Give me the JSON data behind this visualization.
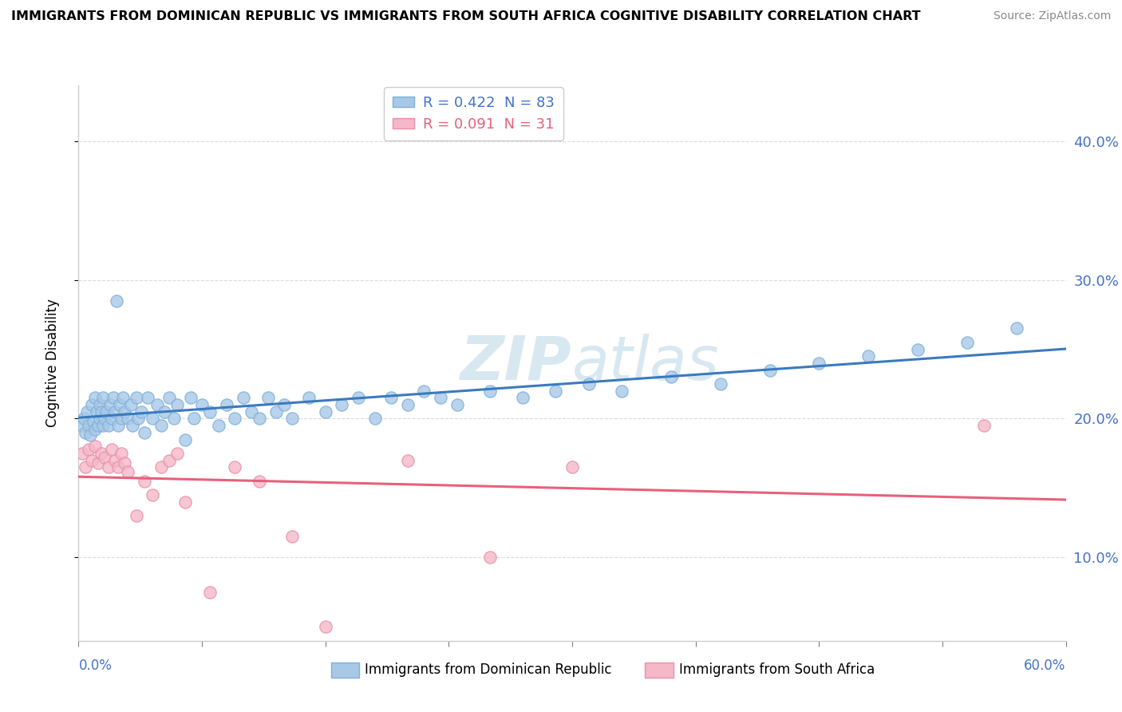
{
  "title": "IMMIGRANTS FROM DOMINICAN REPUBLIC VS IMMIGRANTS FROM SOUTH AFRICA COGNITIVE DISABILITY CORRELATION CHART",
  "source": "Source: ZipAtlas.com",
  "ylabel": "Cognitive Disability",
  "right_yticks": [
    0.1,
    0.2,
    0.3,
    0.4
  ],
  "right_ytick_labels": [
    "10.0%",
    "20.0%",
    "30.0%",
    "40.0%"
  ],
  "legend1_label": "R = 0.422  N = 83",
  "legend2_label": "R = 0.091  N = 31",
  "blue_color": "#a8c8e8",
  "blue_edge_color": "#7eb0d8",
  "pink_color": "#f4b8c8",
  "pink_edge_color": "#e890a8",
  "blue_line_color": "#3a7abf",
  "pink_line_color": "#e8607a",
  "watermark_color": "#d8e8f0",
  "xlim": [
    0.0,
    0.6
  ],
  "ylim": [
    0.04,
    0.44
  ],
  "blue_scatter_x": [
    0.002,
    0.003,
    0.004,
    0.005,
    0.006,
    0.007,
    0.008,
    0.009,
    0.01,
    0.01,
    0.011,
    0.012,
    0.013,
    0.013,
    0.014,
    0.015,
    0.015,
    0.016,
    0.017,
    0.018,
    0.019,
    0.02,
    0.021,
    0.022,
    0.023,
    0.024,
    0.025,
    0.026,
    0.027,
    0.028,
    0.03,
    0.032,
    0.033,
    0.035,
    0.036,
    0.038,
    0.04,
    0.042,
    0.045,
    0.048,
    0.05,
    0.052,
    0.055,
    0.058,
    0.06,
    0.065,
    0.068,
    0.07,
    0.075,
    0.08,
    0.085,
    0.09,
    0.095,
    0.1,
    0.105,
    0.11,
    0.115,
    0.12,
    0.125,
    0.13,
    0.14,
    0.15,
    0.16,
    0.17,
    0.18,
    0.19,
    0.2,
    0.21,
    0.22,
    0.23,
    0.25,
    0.27,
    0.29,
    0.31,
    0.33,
    0.36,
    0.39,
    0.42,
    0.45,
    0.48,
    0.51,
    0.54,
    0.57
  ],
  "blue_scatter_y": [
    0.195,
    0.2,
    0.19,
    0.205,
    0.195,
    0.188,
    0.21,
    0.198,
    0.215,
    0.192,
    0.205,
    0.195,
    0.2,
    0.21,
    0.205,
    0.195,
    0.215,
    0.2,
    0.205,
    0.195,
    0.21,
    0.2,
    0.215,
    0.205,
    0.285,
    0.195,
    0.21,
    0.2,
    0.215,
    0.205,
    0.2,
    0.21,
    0.195,
    0.215,
    0.2,
    0.205,
    0.19,
    0.215,
    0.2,
    0.21,
    0.195,
    0.205,
    0.215,
    0.2,
    0.21,
    0.185,
    0.215,
    0.2,
    0.21,
    0.205,
    0.195,
    0.21,
    0.2,
    0.215,
    0.205,
    0.2,
    0.215,
    0.205,
    0.21,
    0.2,
    0.215,
    0.205,
    0.21,
    0.215,
    0.2,
    0.215,
    0.21,
    0.22,
    0.215,
    0.21,
    0.22,
    0.215,
    0.22,
    0.225,
    0.22,
    0.23,
    0.225,
    0.235,
    0.24,
    0.245,
    0.25,
    0.255,
    0.265
  ],
  "pink_scatter_x": [
    0.002,
    0.004,
    0.006,
    0.008,
    0.01,
    0.012,
    0.014,
    0.016,
    0.018,
    0.02,
    0.022,
    0.024,
    0.026,
    0.028,
    0.03,
    0.035,
    0.04,
    0.045,
    0.05,
    0.055,
    0.06,
    0.065,
    0.08,
    0.095,
    0.11,
    0.13,
    0.15,
    0.2,
    0.25,
    0.3,
    0.55
  ],
  "pink_scatter_y": [
    0.175,
    0.165,
    0.178,
    0.17,
    0.18,
    0.168,
    0.175,
    0.172,
    0.165,
    0.178,
    0.17,
    0.165,
    0.175,
    0.168,
    0.162,
    0.13,
    0.155,
    0.145,
    0.165,
    0.17,
    0.175,
    0.14,
    0.075,
    0.165,
    0.155,
    0.115,
    0.05,
    0.17,
    0.1,
    0.165,
    0.195
  ]
}
